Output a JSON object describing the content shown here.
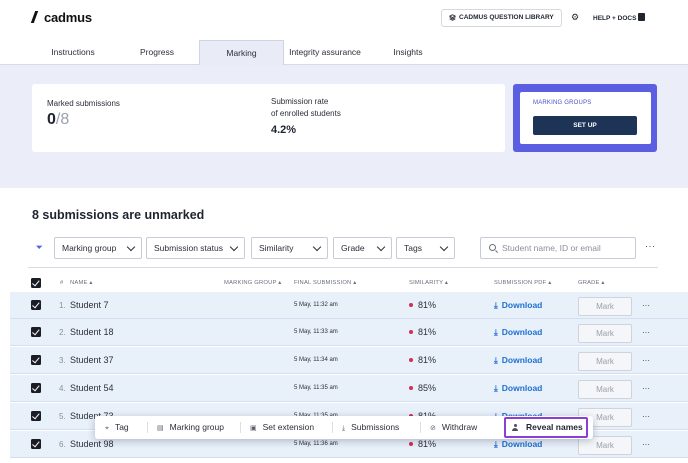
{
  "app": {
    "logo_text": "cadmus"
  },
  "header": {
    "question_library": "CADMUS QUESTION LIBRARY",
    "help": "HELP + DOCS"
  },
  "tabs": [
    {
      "label": "Instructions"
    },
    {
      "label": "Progress"
    },
    {
      "label": "Marking",
      "active": true
    },
    {
      "label": "Integrity assurance"
    },
    {
      "label": "Insights"
    }
  ],
  "stats": {
    "marked_label": "Marked submissions",
    "marked_value": "0",
    "marked_total": "/8",
    "rate_label_1": "Submission rate",
    "rate_label_2": "of enrolled students",
    "rate_value": "4.2%"
  },
  "marking_groups": {
    "title": "MARKING GROUPS",
    "button": "SET UP"
  },
  "list": {
    "heading": "8 submissions are unmarked",
    "filters": [
      "Marking group",
      "Submission status",
      "Similarity",
      "Grade",
      "Tags"
    ],
    "search_placeholder": "Student name, ID or email",
    "columns": {
      "num": "#",
      "name": "NAME",
      "marking_group": "MARKING GROUP",
      "final_submission": "FINAL SUBMISSION",
      "similarity": "SIMILARITY",
      "pdf": "SUBMISSION PDF",
      "grade": "GRADE"
    },
    "rows": [
      {
        "num": "1.",
        "name": "Student 7",
        "submitted": "5 May, 11:32 am",
        "similarity": "81%",
        "pdf": "Download",
        "grade": "Mark"
      },
      {
        "num": "2.",
        "name": "Student 18",
        "submitted": "5 May, 11:33 am",
        "similarity": "81%",
        "pdf": "Download",
        "grade": "Mark"
      },
      {
        "num": "3.",
        "name": "Student 37",
        "submitted": "5 May, 11:34 am",
        "similarity": "81%",
        "pdf": "Download",
        "grade": "Mark"
      },
      {
        "num": "4.",
        "name": "Student 54",
        "submitted": "5 May, 11:35 am",
        "similarity": "85%",
        "pdf": "Download",
        "grade": "Mark"
      },
      {
        "num": "5.",
        "name": "Student 73",
        "submitted": "5 May, 11:35 am",
        "similarity": "81%",
        "pdf": "Download",
        "grade": "Mark"
      },
      {
        "num": "6.",
        "name": "Student 98",
        "submitted": "5 May, 11:36 am",
        "similarity": "81%",
        "pdf": "Download",
        "grade": "Mark"
      }
    ]
  },
  "bulk_actions": {
    "tag": "Tag",
    "marking_group": "Marking group",
    "set_extension": "Set extension",
    "submissions": "Submissions",
    "withdraw": "Withdraw",
    "reveal_names": "Reveal names"
  },
  "colors": {
    "accent": "#5b5ee0",
    "primary_button": "#1e3457",
    "link": "#1f6fd1",
    "similarity_dot": "#d0304a",
    "highlight_outline": "#8a3fd6",
    "row_selected": "#e8f0fa"
  }
}
